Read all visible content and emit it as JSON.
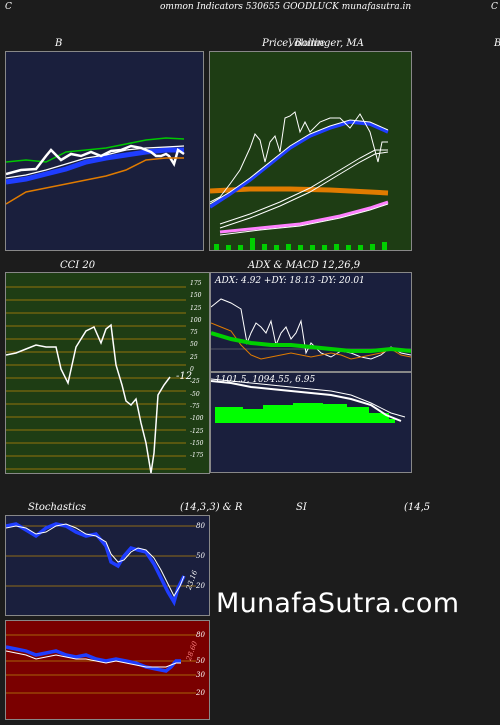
{
  "header": {
    "letter_left": "C",
    "title": "ommon  Indicators 530655 GOODLUCK munafasutra.in",
    "letter_right": "C"
  },
  "panels": {
    "bollinger": {
      "label": "B"
    },
    "price": {
      "label": "Price,  Bollinger,  MA",
      "overlay": "Volume",
      "right_letter": "B"
    },
    "cci": {
      "label": "CCI 20",
      "ticks": [
        "175",
        "150",
        "125",
        "100",
        "75",
        "50",
        "25",
        "0",
        "-25",
        "-50",
        "-75",
        "-100",
        "-125",
        "-150",
        "-175"
      ],
      "value": "-12"
    },
    "adx": {
      "label": "ADX  & MACD 12,26,9",
      "readout": "ADX: 4.92  +DY: 18.13 -DY: 20.01",
      "ticks": [
        "100",
        "90",
        "80",
        "70",
        "60",
        "50",
        "40",
        "30",
        "20",
        "10",
        "0"
      ]
    },
    "macd": {
      "readout": "1101.5,  1094.55,  6.95"
    },
    "stochastics": {
      "label": "Stochastics",
      "params": "(14,3,3) & R",
      "ticks": [
        "80",
        "50",
        "20"
      ],
      "value": "23.16"
    },
    "rsi": {
      "label": "SI",
      "params": "(14,5",
      "ticks": [
        "80",
        "50",
        "30",
        "20"
      ],
      "value": "28.60"
    }
  },
  "watermark": "MunafaSutra.com",
  "colors": {
    "navy_bg": "#1a1f3d",
    "green_bg": "#1e3d14",
    "red_bg": "#7a0000",
    "blue_line": "#1f3dff",
    "orange_line": "#e07b00",
    "green_line": "#00c800",
    "volume_green": "#00d000"
  }
}
